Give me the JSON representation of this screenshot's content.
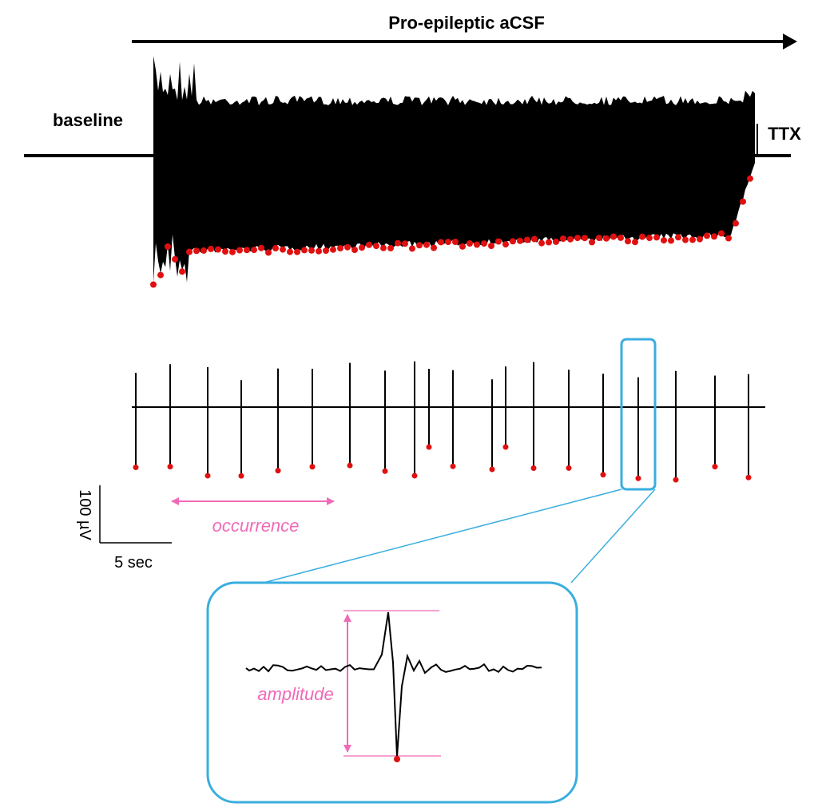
{
  "header": {
    "title": "Pro-epileptic aCSF"
  },
  "labels": {
    "baseline": "baseline",
    "ttx": "TTX"
  },
  "scale_bar": {
    "vertical": "100 µV",
    "horizontal": "5 sec"
  },
  "annotations": {
    "occurrence": "occurrence",
    "amplitude": "amplitude"
  }
}
